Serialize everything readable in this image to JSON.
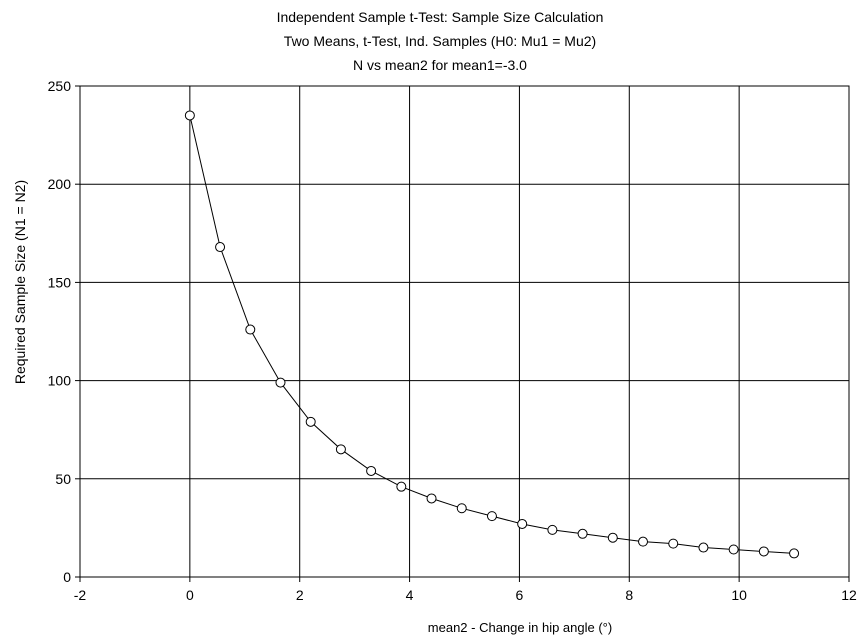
{
  "chart_data": {
    "type": "line",
    "title_lines": [
      "Independent Sample t-Test: Sample Size Calculation",
      "Two Means, t-Test, Ind. Samples (H0:  Mu1 = Mu2)",
      "N vs mean2 for mean1=-3.0"
    ],
    "xlabel": "mean2 - Change in hip angle (°)",
    "ylabel": "Required Sample Size (N1 = N2)",
    "xlim": [
      -2,
      12
    ],
    "ylim": [
      0,
      250
    ],
    "x_ticks": [
      -2,
      0,
      2,
      4,
      6,
      8,
      10,
      12
    ],
    "y_ticks": [
      0,
      50,
      100,
      150,
      200,
      250
    ],
    "grid": true,
    "marker": "open-circle",
    "series": [
      {
        "x": [
          0,
          0.55,
          1.1,
          1.65,
          2.2,
          2.75,
          3.3,
          3.85,
          4.4,
          4.95,
          5.5,
          6.05,
          6.6,
          7.15,
          7.7,
          8.25,
          8.8,
          9.35,
          9.9,
          10.45,
          11.0
        ],
        "y": [
          235,
          168,
          126,
          99,
          79,
          65,
          54,
          46,
          40,
          35,
          31,
          27,
          24,
          22,
          20,
          18,
          17,
          15,
          14,
          13,
          12
        ]
      }
    ]
  }
}
